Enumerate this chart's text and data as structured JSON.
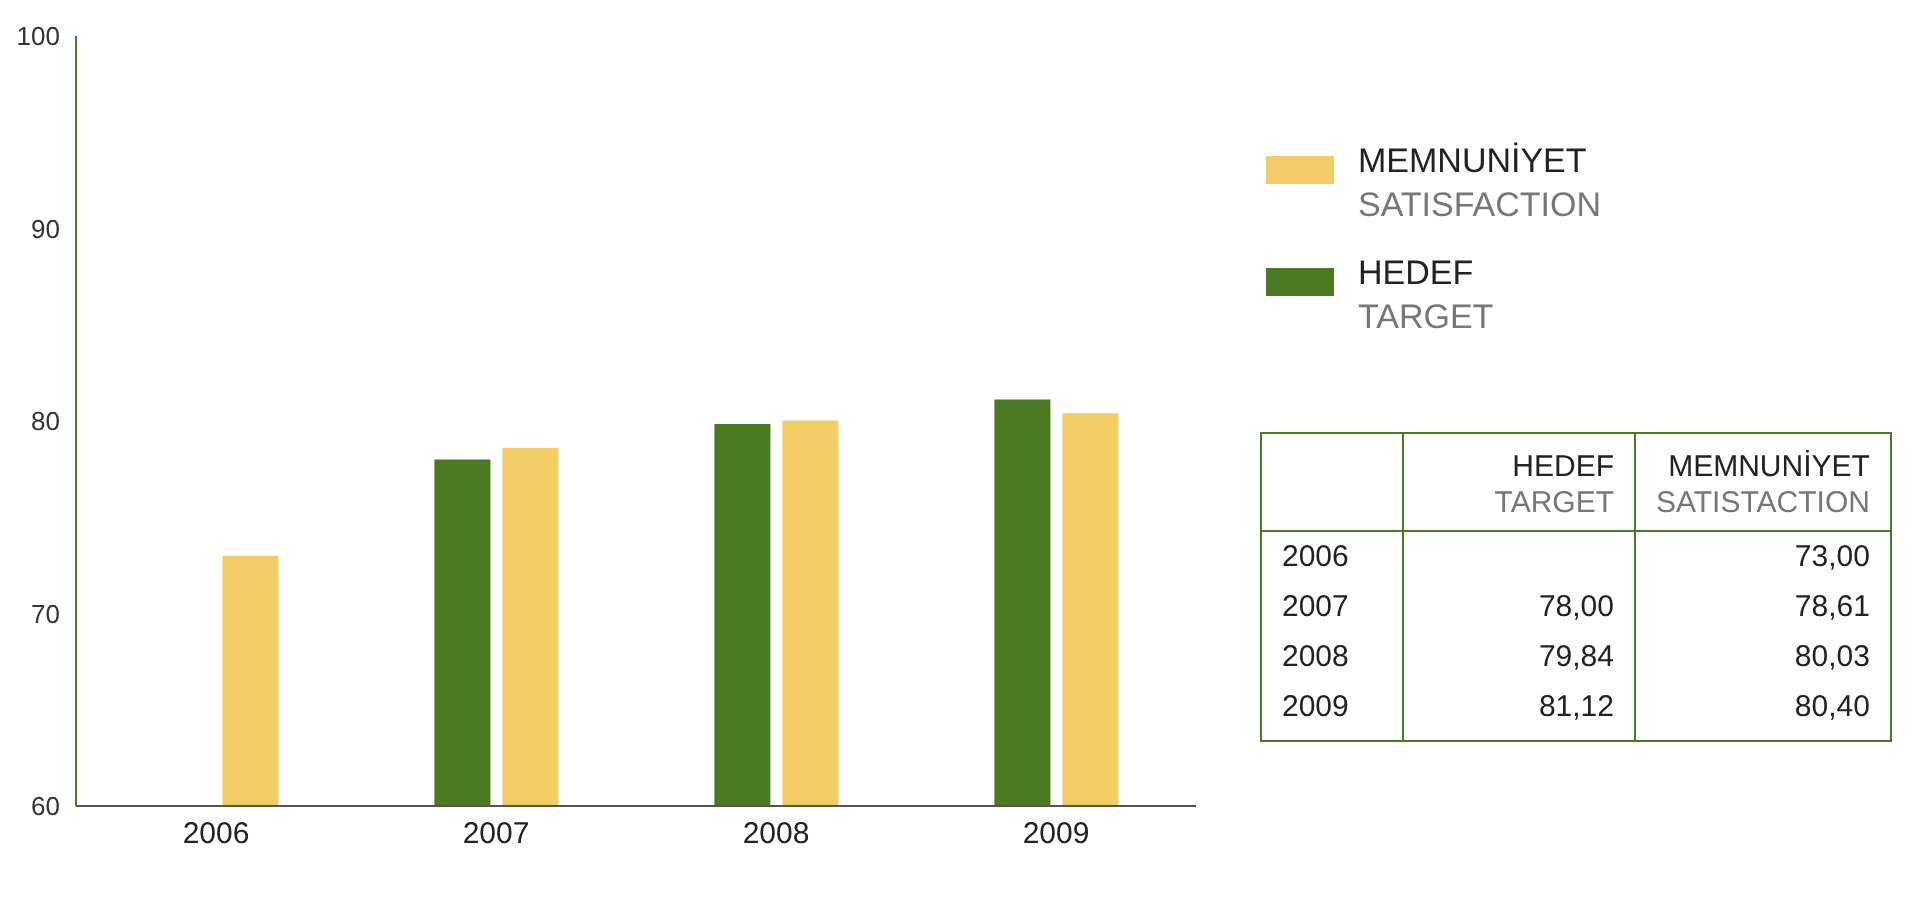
{
  "chart_data": {
    "type": "bar",
    "categories": [
      "2006",
      "2007",
      "2008",
      "2009"
    ],
    "series": [
      {
        "name": "HEDEF\nTARGET",
        "color": "#4a7a22",
        "values": [
          null,
          78.0,
          79.84,
          81.12
        ]
      },
      {
        "name": "MEMNUNİYET\nSATISFACTION",
        "color": "#f2cd66",
        "values": [
          73.0,
          78.61,
          80.03,
          80.4
        ]
      }
    ],
    "ylim": [
      60,
      100
    ],
    "yticks": [
      60,
      70,
      80,
      90,
      100
    ],
    "legend": "right",
    "annotations": [
      "HEDEF\nTARGET",
      "MEMNUNİYET\nSATISTACTION",
      "78,00",
      "79,84",
      "81,12",
      "73,00",
      "78,61",
      "80,03",
      "80,40"
    ]
  }
}
